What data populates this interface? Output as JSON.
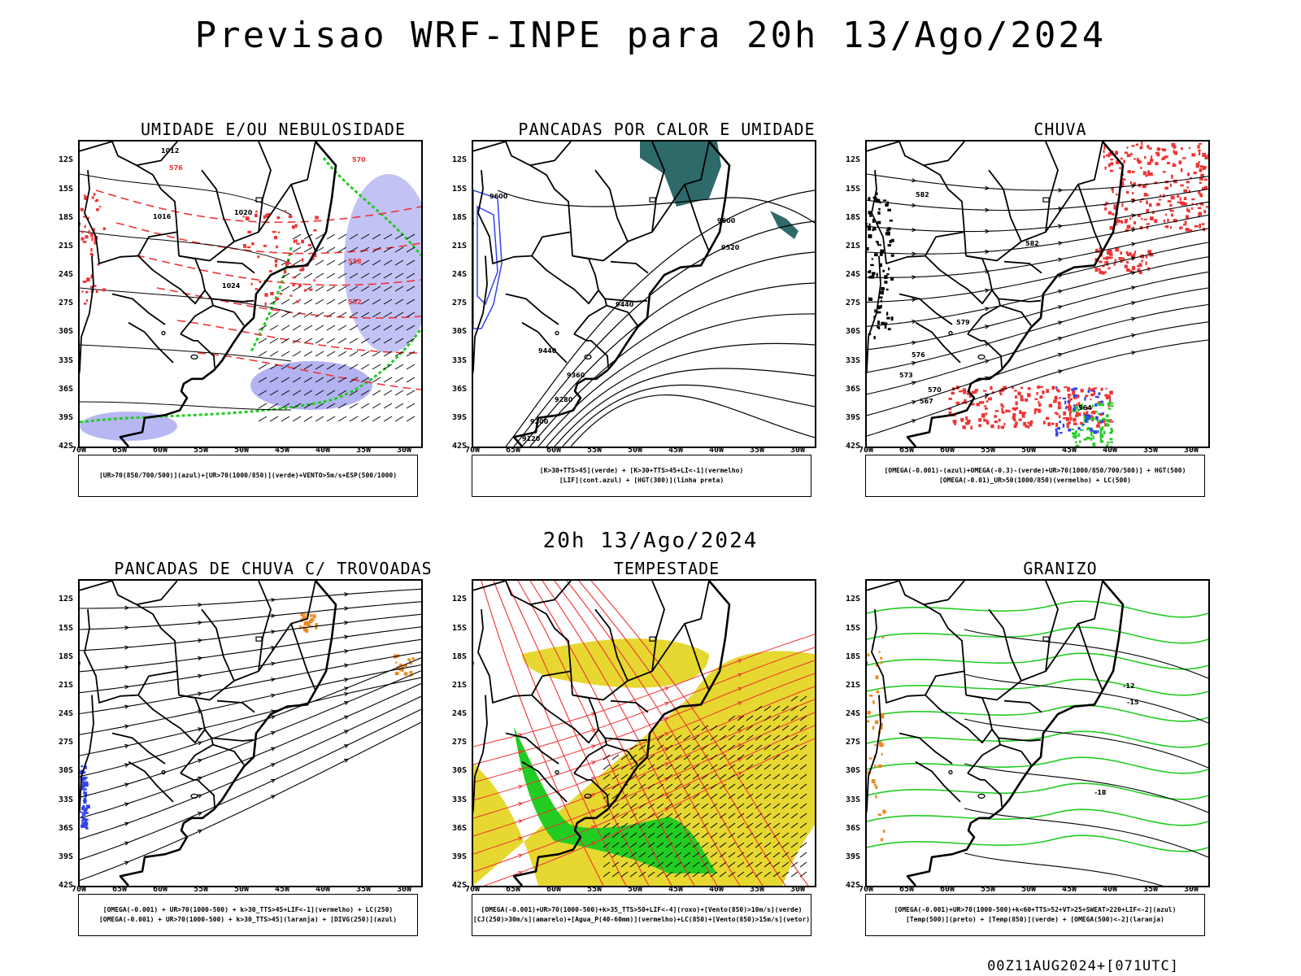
{
  "title": "Previsao WRF-INPE  para 20h 13/Ago/2024",
  "subtitle": "20h 13/Ago/2024",
  "footer": "00Z11AUG2024+[071UTC]",
  "lat_labels": [
    "12S",
    "15S",
    "18S",
    "21S",
    "24S",
    "27S",
    "30S",
    "33S",
    "36S",
    "39S",
    "42S"
  ],
  "lon_labels": [
    "70W",
    "65W",
    "60W",
    "55W",
    "50W",
    "45W",
    "40W",
    "35W",
    "30W"
  ],
  "panels": [
    {
      "title": "UMIDADE E/OU NEBULOSIDADE",
      "legend": [
        "[UR>70(850/700/500)](azul)+[UR>70(1000/850)](verde)+VENTO>5m/s+ESP(500/1000)"
      ]
    },
    {
      "title": "PANCADAS POR CALOR E UMIDADE",
      "legend": [
        "[K>30+TTS>45](verde) + [K>30+TTS>45+LI<-1](vermelho)",
        "[LIF](cont.azul) + [HGT(300)](linha preta)"
      ]
    },
    {
      "title": "CHUVA",
      "legend": [
        "[OMEGA(-0.001)-(azul)+OMEGA(-0.3)-(verde)+UR>70(1000/850/700/500)] + HGT(500)",
        "[OMEGA(-0.01)_UR>50(1000/850)(vermelho) + LC(500)"
      ]
    },
    {
      "title": "PANCADAS DE CHUVA C/ TROVOADAS",
      "legend": [
        "[OMEGA(-0.001) + UR>70(1000-500) + k>30_TTS>45+LIF<-1](vermelho) + LC(250)",
        "[OMEGA(-0.001) + UR>70(1000-500) + k>30_TTS>45](laranja) + [DIVG(250)](azul)"
      ]
    },
    {
      "title": "TEMPESTADE",
      "legend": [
        "[OMEGA(-0.001)+UR>70(1000-500)+k>35_TTS>50+LIF<-4](roxo)+[Vento(850)>10m/s](verde)",
        "[CJ(250)>30m/s](amarelo)+[Agua_P(40-60mm)](vermelho)+LC(850)+[Vento(850)>15m/s](vetor)"
      ]
    },
    {
      "title": "GRANIZO",
      "legend": [
        "[OMEGA(-0.001)+UR>70(1000-500)+k<60+TTS>52+VT>25+SWEAT>220+LIF<-2](azul)",
        "[Temp(500)](preto) + [Temp(850)](verde) + [OMEGA(500)<-2](laranja)"
      ]
    }
  ],
  "contour_labels": {
    "p1": [
      "1012",
      "1016",
      "1020",
      "1024",
      "570",
      "576",
      "558",
      "552"
    ],
    "p2": [
      "9600",
      "9520",
      "9440",
      "9360",
      "9280",
      "9200",
      "9120"
    ],
    "p3": [
      "582",
      "579",
      "576",
      "573",
      "570",
      "567",
      "564"
    ],
    "p6": [
      "-12",
      "-15",
      "-18"
    ]
  },
  "colors": {
    "frame": "#000000",
    "green": "#22cc22",
    "red": "#ee3333",
    "blue": "#3344ee",
    "lightblue": "#9999ee",
    "yellow": "#e6d830",
    "teal": "#2e6a6a",
    "orange": "#ee8822"
  }
}
